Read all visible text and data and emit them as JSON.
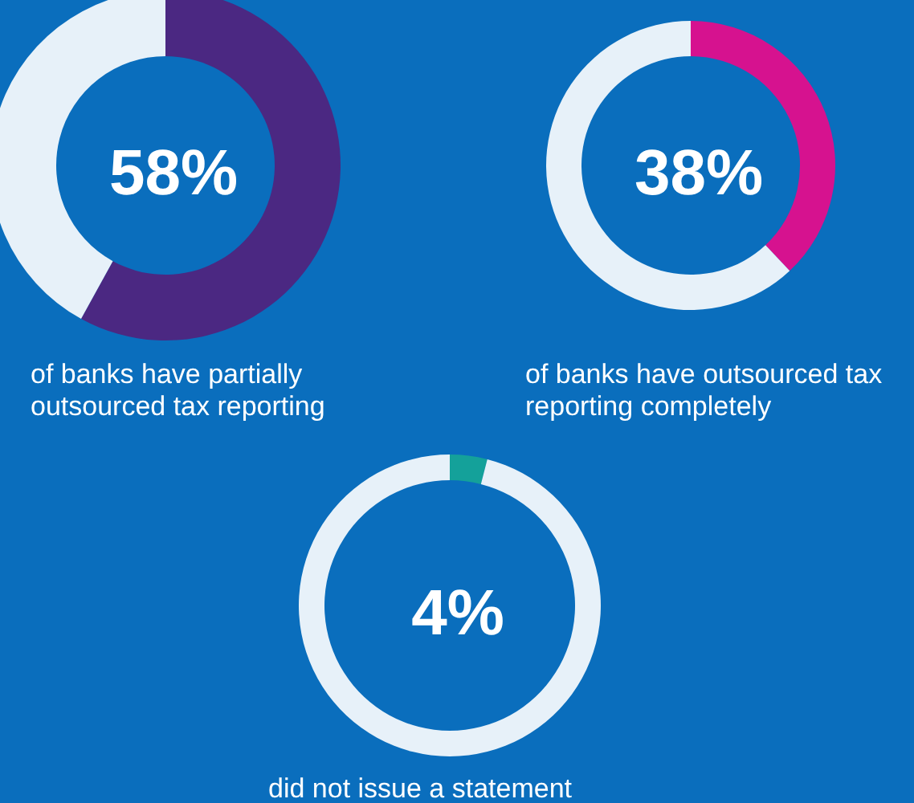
{
  "chart_data": [
    {
      "type": "donut",
      "title": "58%",
      "subtitle": "of banks have partially outsourced tax reporting",
      "categories": [
        null,
        null
      ],
      "values": [
        58,
        42
      ],
      "colors": [
        "#4b2882",
        "#ffffff"
      ]
    },
    {
      "type": "donut",
      "title": "38%",
      "subtitle": "of banks have outsourced tax reporting completely",
      "categories": [
        null,
        null
      ],
      "values": [
        38,
        62
      ],
      "colors": [
        "#d6128f",
        "#ffffff"
      ]
    },
    {
      "type": "donut",
      "title": "4%",
      "subtitle": "did not issue a statement",
      "categories": [
        null,
        null
      ],
      "values": [
        4,
        96
      ],
      "colors": [
        "#14a19a",
        "#ffffff"
      ]
    }
  ]
}
